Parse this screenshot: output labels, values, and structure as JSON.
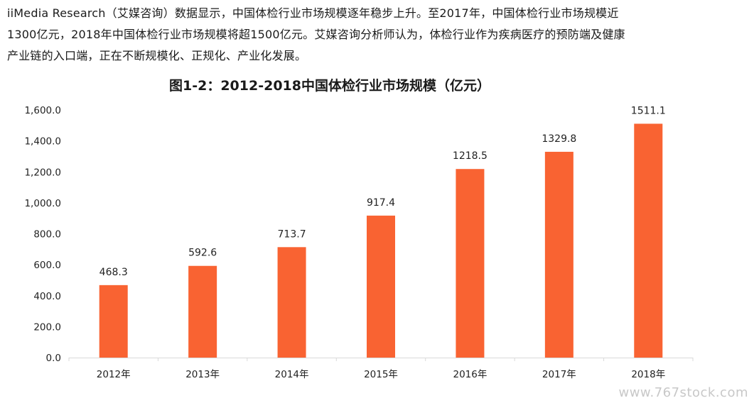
{
  "intro": {
    "line1": "iiMedia Research（艾媒咨询）数据显示，中国体检行业市场规模逐年稳步上升。至2017年，中国体检行业市场规模近",
    "line2": "1300亿元，2018年中国体检行业市场规模将超1500亿元。艾媒咨询分析师认为，体检行业作为疾病医疗的预防端及健康",
    "line3": "产业链的入口端，正在不断规模化、正规化、产业化发展。"
  },
  "watermark": "www.767stock.com",
  "chart_data": {
    "type": "bar",
    "title": "图1-2：2012-2018中国体检行业市场规模（亿元）",
    "categories": [
      "2012年",
      "2013年",
      "2014年",
      "2015年",
      "2016年",
      "2017年",
      "2018年"
    ],
    "values": [
      468.3,
      592.6,
      713.7,
      917.4,
      1218.5,
      1329.8,
      1511.1
    ],
    "value_labels": [
      "468.3",
      "592.6",
      "713.7",
      "917.4",
      "1218.5",
      "1329.8",
      "1511.1"
    ],
    "y_ticks": [
      "0.0",
      "200.0",
      "400.0",
      "600.0",
      "800.0",
      "1,000.0",
      "1,200.0",
      "1,400.0",
      "1,600.0"
    ],
    "ylim": [
      0,
      1600
    ],
    "xlabel": "",
    "ylabel": "",
    "grid": false,
    "bar_color": "#f96332",
    "axis_color": "#d9d9d9"
  }
}
